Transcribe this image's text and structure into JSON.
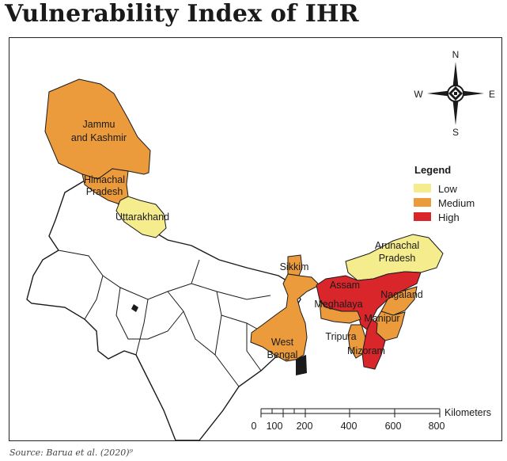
{
  "title": "Vulnerability Index of IHR",
  "source": "Source: Barua et al. (2020)⁹",
  "colors": {
    "low": "#f5ec8e",
    "medium": "#eb9b3c",
    "high": "#d8262b",
    "outline": "#1a1a1a"
  },
  "legend": {
    "title": "Legend",
    "items": [
      {
        "label": "Low",
        "color": "#f5ec8e"
      },
      {
        "label": "Medium",
        "color": "#eb9b3c"
      },
      {
        "label": "High",
        "color": "#d8262b"
      }
    ]
  },
  "regions": [
    {
      "name": "Jammu and Kashmir",
      "label_lines": [
        "Jammu",
        "and Kashmir"
      ],
      "level": "Medium"
    },
    {
      "name": "Himachal Pradesh",
      "label_lines": [
        "Himachal",
        "Pradesh"
      ],
      "level": "Medium"
    },
    {
      "name": "Uttarakhand",
      "label_lines": [
        "Uttarakhand"
      ],
      "level": "Low"
    },
    {
      "name": "Sikkim",
      "label_lines": [
        "Sikkim"
      ],
      "level": "Medium"
    },
    {
      "name": "West Bengal",
      "label_lines": [
        "West",
        "Bengal"
      ],
      "level": "Medium"
    },
    {
      "name": "Arunachal Pradesh",
      "label_lines": [
        "Arunachal",
        "Pradesh"
      ],
      "level": "Low"
    },
    {
      "name": "Assam",
      "label_lines": [
        "Assam"
      ],
      "level": "High"
    },
    {
      "name": "Meghalaya",
      "label_lines": [
        "Meghalaya"
      ],
      "level": "Medium"
    },
    {
      "name": "Nagaland",
      "label_lines": [
        "Nagaland"
      ],
      "level": "Medium"
    },
    {
      "name": "Manipur",
      "label_lines": [
        "Manipur"
      ],
      "level": "Medium"
    },
    {
      "name": "Tripura",
      "label_lines": [
        "Tripura"
      ],
      "level": "Medium"
    },
    {
      "name": "Mizoram",
      "label_lines": [
        "Mizoram"
      ],
      "level": "High"
    }
  ],
  "compass": {
    "n": "N",
    "s": "S",
    "e": "E",
    "w": "W"
  },
  "scale_bar": {
    "unit": "Kilometers",
    "ticks": [
      "0",
      "100",
      "200",
      "400",
      "600",
      "800"
    ]
  }
}
